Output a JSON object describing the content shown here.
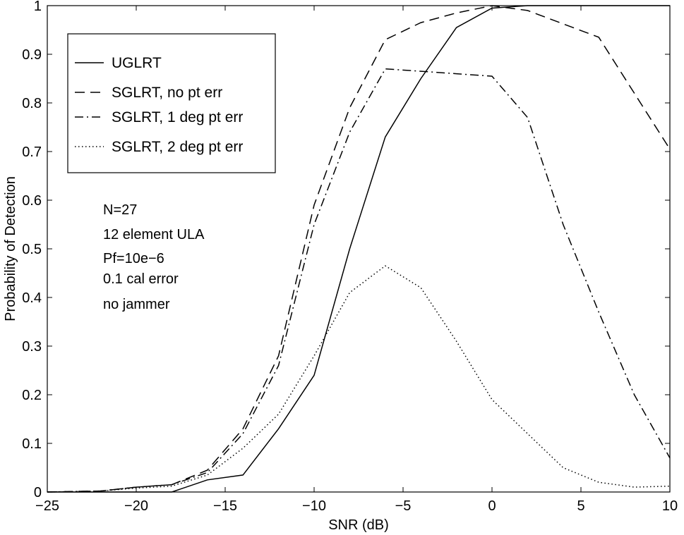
{
  "chart_data": {
    "type": "line",
    "title": "",
    "xlabel": "SNR (dB)",
    "ylabel": "Probability of Detection",
    "xlim": [
      -25,
      10
    ],
    "ylim": [
      0,
      1
    ],
    "xticks": [
      -25,
      -20,
      -15,
      -10,
      -5,
      0,
      5,
      10
    ],
    "xtick_labels": [
      "−25",
      "−20",
      "−15",
      "−10",
      "−5",
      "0",
      "5",
      "10"
    ],
    "yticks": [
      0,
      0.1,
      0.2,
      0.3,
      0.4,
      0.5,
      0.6,
      0.7,
      0.8,
      0.9,
      1
    ],
    "ytick_labels": [
      "0",
      "0.1",
      "0.2",
      "0.3",
      "0.4",
      "0.5",
      "0.6",
      "0.7",
      "0.8",
      "0.9",
      "1"
    ],
    "grid": false,
    "legend_position": "top-left",
    "series": [
      {
        "name": "UGLRT",
        "style": "solid",
        "x": [
          -25,
          -18,
          -16,
          -14,
          -12,
          -10,
          -8,
          -6,
          -4,
          -2,
          0,
          2,
          10
        ],
        "y": [
          0,
          0,
          0.025,
          0.035,
          0.13,
          0.24,
          0.5,
          0.73,
          0.85,
          0.955,
          0.995,
          1.0,
          1.0
        ]
      },
      {
        "name": "SGLRT, no pt err",
        "style": "dashed",
        "x": [
          -25,
          -22,
          -20,
          -18,
          -16,
          -14,
          -12,
          -10,
          -8,
          -6,
          -4,
          -2,
          0,
          2,
          6,
          10
        ],
        "y": [
          0,
          0.002,
          0.01,
          0.015,
          0.045,
          0.13,
          0.28,
          0.59,
          0.79,
          0.93,
          0.965,
          0.985,
          1.0,
          0.99,
          0.935,
          0.705
        ]
      },
      {
        "name": "SGLRT, 1 deg pt err",
        "style": "dashdot",
        "x": [
          -25,
          -22,
          -20,
          -18,
          -16,
          -14,
          -12,
          -10,
          -8,
          -6,
          -4,
          -2,
          0,
          2,
          4,
          6,
          8,
          10
        ],
        "y": [
          0,
          0.002,
          0.01,
          0.015,
          0.04,
          0.12,
          0.26,
          0.55,
          0.74,
          0.87,
          0.865,
          0.86,
          0.855,
          0.77,
          0.55,
          0.37,
          0.2,
          0.07
        ]
      },
      {
        "name": "SGLRT, 2 deg pt err",
        "style": "dotted",
        "x": [
          -25,
          -22,
          -20,
          -18,
          -16,
          -14,
          -12,
          -10,
          -8,
          -6,
          -4,
          -2,
          0,
          2,
          4,
          6,
          8,
          10
        ],
        "y": [
          0,
          0.002,
          0.008,
          0.012,
          0.035,
          0.09,
          0.16,
          0.28,
          0.41,
          0.465,
          0.42,
          0.31,
          0.19,
          0.12,
          0.05,
          0.02,
          0.01,
          0.012
        ]
      }
    ],
    "annotations": [
      "N=27",
      "12 element ULA",
      "Pf=10e−6",
      "0.1 cal error",
      "no jammer"
    ]
  }
}
